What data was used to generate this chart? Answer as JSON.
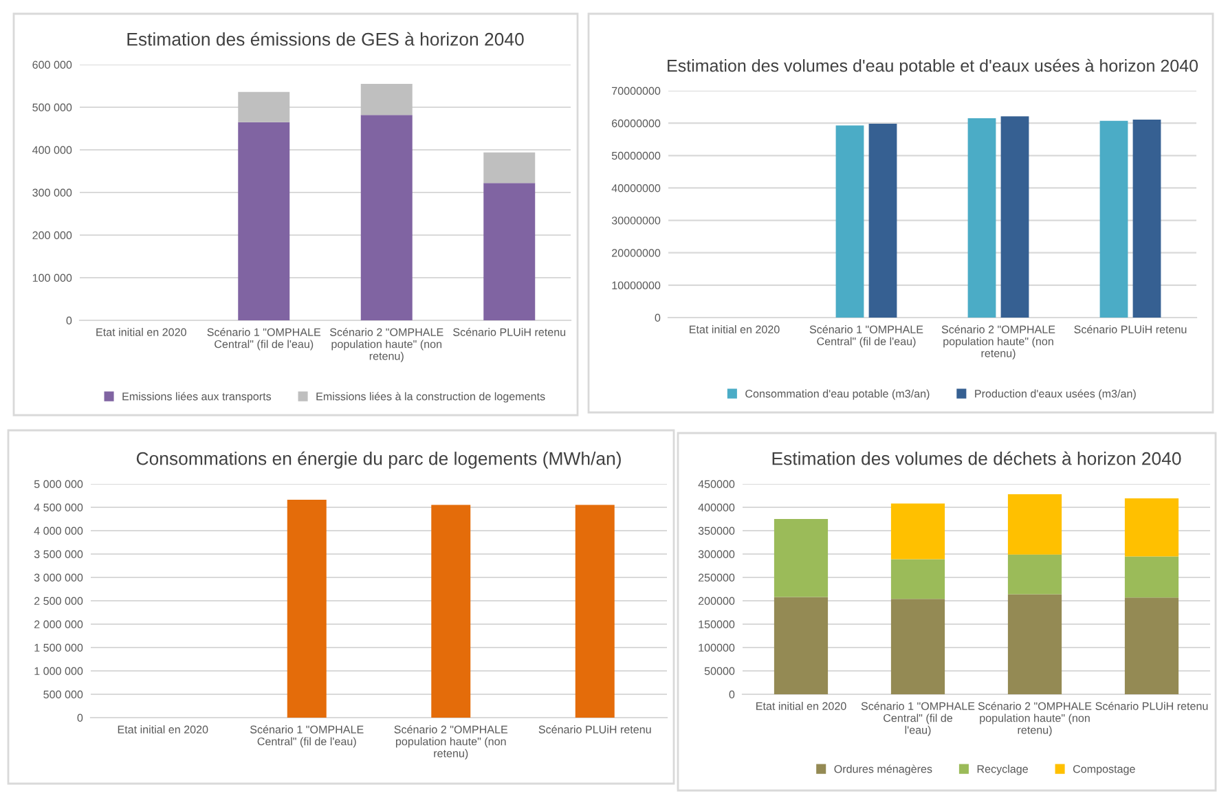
{
  "chart_data": [
    {
      "type": "bar",
      "title": "Estimation des émissions de GES à horizon 2040",
      "stacked": true,
      "grid": "y",
      "legend": "bottom",
      "categories": [
        "Etat initial en 2020",
        "Scénario 1 \"OMPHALE Central\" (fil de l'eau)",
        "Scénario 2 \"OMPHALE population haute\" (non retenu)",
        "Scénario PLUiH retenu"
      ],
      "series": [
        {
          "name": "Emissions liées aux transports",
          "color": "#8064a2",
          "values": [
            null,
            465000,
            482000,
            322000
          ]
        },
        {
          "name": "Emissions liées à la construction de logements",
          "color": "#bfbfbf",
          "values": [
            null,
            71000,
            73000,
            72000
          ]
        }
      ],
      "ylim": [
        0,
        600000
      ],
      "yticks": [
        {
          "value": 0,
          "label": "0"
        },
        {
          "value": 100000,
          "label": "100 000"
        },
        {
          "value": 200000,
          "label": "200 000"
        },
        {
          "value": 300000,
          "label": "300 000"
        },
        {
          "value": 400000,
          "label": "400 000"
        },
        {
          "value": 500000,
          "label": "500 000"
        },
        {
          "value": 600000,
          "label": "600 000"
        }
      ]
    },
    {
      "type": "bar",
      "title": "Estimation des volumes d'eau potable et d'eaux usées à horizon 2040",
      "grid": "y",
      "legend": "bottom",
      "categories": [
        "Etat initial en 2020",
        "Scénario 1 \"OMPHALE Central\" (fil de l'eau)",
        "Scénario 2 \"OMPHALE population haute\" (non retenu)",
        "Scénario PLUiH retenu"
      ],
      "series": [
        {
          "name": "Consommation d'eau potable (m3/an)",
          "color": "#4bacc6",
          "values": [
            null,
            59300000,
            61500000,
            60700000
          ]
        },
        {
          "name": "Production d'eaux usées (m3/an)",
          "color": "#366092",
          "values": [
            null,
            59800000,
            62100000,
            61100000
          ]
        }
      ],
      "ylim": [
        0,
        70000000
      ],
      "yticks": [
        0,
        10000000,
        20000000,
        30000000,
        40000000,
        50000000,
        60000000,
        70000000
      ]
    },
    {
      "type": "bar",
      "title": "Consommations en énergie du parc de logements (MWh/an)",
      "grid": "y",
      "categories": [
        "Etat initial en 2020",
        "Scénario 1 \"OMPHALE Central\" (fil de l'eau)",
        "Scénario 2 \"OMPHALE population haute\" (non retenu)",
        "Scénario PLUiH retenu"
      ],
      "series": [
        {
          "color": "#e46c0a",
          "values": [
            null,
            4660000,
            4550000,
            4550000
          ]
        }
      ],
      "ylim": [
        0,
        5000000
      ],
      "yticks": [
        {
          "value": 0,
          "label": "0"
        },
        {
          "value": 500000,
          "label": "500 000"
        },
        {
          "value": 1000000,
          "label": "1 000 000"
        },
        {
          "value": 1500000,
          "label": "1 500 000"
        },
        {
          "value": 2000000,
          "label": "2 000 000"
        },
        {
          "value": 2500000,
          "label": "2 500 000"
        },
        {
          "value": 3000000,
          "label": "3 000 000"
        },
        {
          "value": 3500000,
          "label": "3 500 000"
        },
        {
          "value": 4000000,
          "label": "4 000 000"
        },
        {
          "value": 4500000,
          "label": "4 500 000"
        },
        {
          "value": 5000000,
          "label": "5 000 000"
        }
      ]
    },
    {
      "type": "bar",
      "title": "Estimation des volumes de déchets à horizon 2040",
      "stacked": true,
      "grid": "y",
      "legend": "bottom",
      "categories": [
        "Etat initial en 2020",
        "Scénario 1 \"OMPHALE Central\" (fil de l'eau)",
        "Scénario 2 \"OMPHALE population haute\" (non retenu)",
        "Scénario PLUiH retenu"
      ],
      "series": [
        {
          "name": "Ordures ménagères",
          "color": "#948a54",
          "values": [
            208000,
            204000,
            214000,
            207000
          ]
        },
        {
          "name": "Recyclage",
          "color": "#9bbb59",
          "values": [
            167000,
            85000,
            85000,
            88000
          ]
        },
        {
          "name": "Compostage",
          "color": "#ffc000",
          "values": [
            null,
            119000,
            129000,
            124000
          ]
        }
      ],
      "ylim": [
        0,
        450000
      ],
      "yticks": [
        0,
        50000,
        100000,
        150000,
        200000,
        250000,
        300000,
        350000,
        400000,
        450000
      ]
    }
  ]
}
